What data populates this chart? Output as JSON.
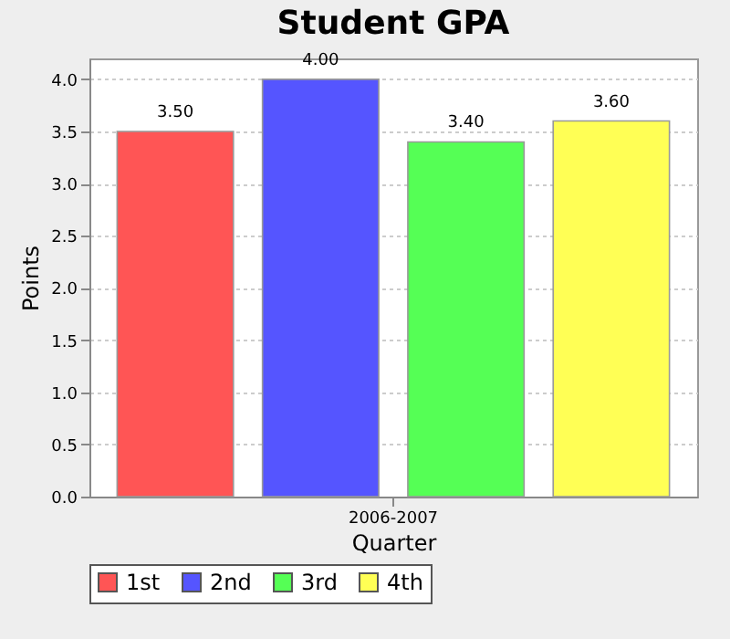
{
  "chart_data": {
    "type": "bar",
    "title": "Student GPA",
    "xlabel": "Quarter",
    "ylabel": "Points",
    "categories": [
      "2006-2007"
    ],
    "series": [
      {
        "name": "1st",
        "color": "#ff5555",
        "values": [
          3.5
        ],
        "value_labels": [
          "3.50"
        ]
      },
      {
        "name": "2nd",
        "color": "#5555ff",
        "values": [
          4.0
        ],
        "value_labels": [
          "4.00"
        ]
      },
      {
        "name": "3rd",
        "color": "#55ff55",
        "values": [
          3.4
        ],
        "value_labels": [
          "3.40"
        ]
      },
      {
        "name": "4th",
        "color": "#ffff55",
        "values": [
          3.6
        ],
        "value_labels": [
          "3.60"
        ]
      }
    ],
    "ylim": [
      0,
      4.2
    ],
    "yticks": [
      {
        "value": 0,
        "label": "0.0"
      },
      {
        "value": 0.5,
        "label": "0.5"
      },
      {
        "value": 1,
        "label": "1.0"
      },
      {
        "value": 1.5,
        "label": "1.5"
      },
      {
        "value": 2,
        "label": "2.0"
      },
      {
        "value": 2.5,
        "label": "2.5"
      },
      {
        "value": 3,
        "label": "3.0"
      },
      {
        "value": 3.5,
        "label": "3.5"
      },
      {
        "value": 4,
        "label": "4.0"
      }
    ],
    "grid": "y",
    "legend": "bottom"
  }
}
